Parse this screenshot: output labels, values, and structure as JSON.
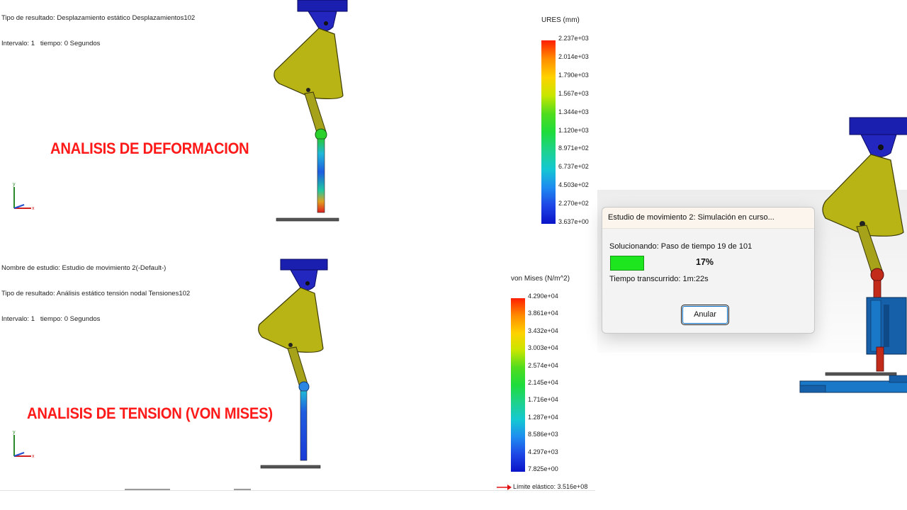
{
  "top_panel": {
    "info_lines": [
      "Tipo de resultado: Desplazamiento estático Desplazamientos102",
      "Intervalo: 1   tiempo: 0 Segundos"
    ],
    "overlay_label": "ANALISIS DE DEFORMACION",
    "legend": {
      "title": "URES (mm)",
      "ticks": [
        "2.237e+03",
        "2.014e+03",
        "1.790e+03",
        "1.567e+03",
        "1.344e+03",
        "1.120e+03",
        "8.971e+02",
        "6.737e+02",
        "4.503e+02",
        "2.270e+02",
        "3.637e+00"
      ]
    },
    "triad": {
      "y": "y",
      "x": "x"
    }
  },
  "bottom_panel": {
    "info_lines": [
      "Nombre de estudio: Estudio de movimiento 2(-Default-)",
      "Tipo de resultado: Análisis estático tensión nodal Tensiones102",
      "Intervalo: 1   tiempo: 0 Segundos"
    ],
    "overlay_label": "ANALISIS DE TENSION (VON MISES)",
    "legend": {
      "title": "von Mises (N/m^2)",
      "ticks": [
        "4.290e+04",
        "3.861e+04",
        "3.432e+04",
        "3.003e+04",
        "2.574e+04",
        "2.145e+04",
        "1.716e+04",
        "1.287e+04",
        "8.586e+03",
        "4.297e+03",
        "7.825e+00"
      ],
      "elastic_limit": "Límite elástico: 3.516e+08"
    },
    "triad": {
      "y": "y",
      "x": "x"
    }
  },
  "dialog": {
    "title": "Estudio de movimiento 2: Simulación en curso...",
    "solving_text": "Solucionando: Paso de tiempo 19 de 101",
    "progress_percent": "17%",
    "progress_value": 17,
    "elapsed_text": "Tiempo transcurrido: 1m:22s",
    "cancel_label": "Anular"
  },
  "colors": {
    "link_body": "#b9b416",
    "mount_block": "#1b1fb0",
    "label_red": "#ff1a1a",
    "progress_green": "#1ee61e"
  }
}
